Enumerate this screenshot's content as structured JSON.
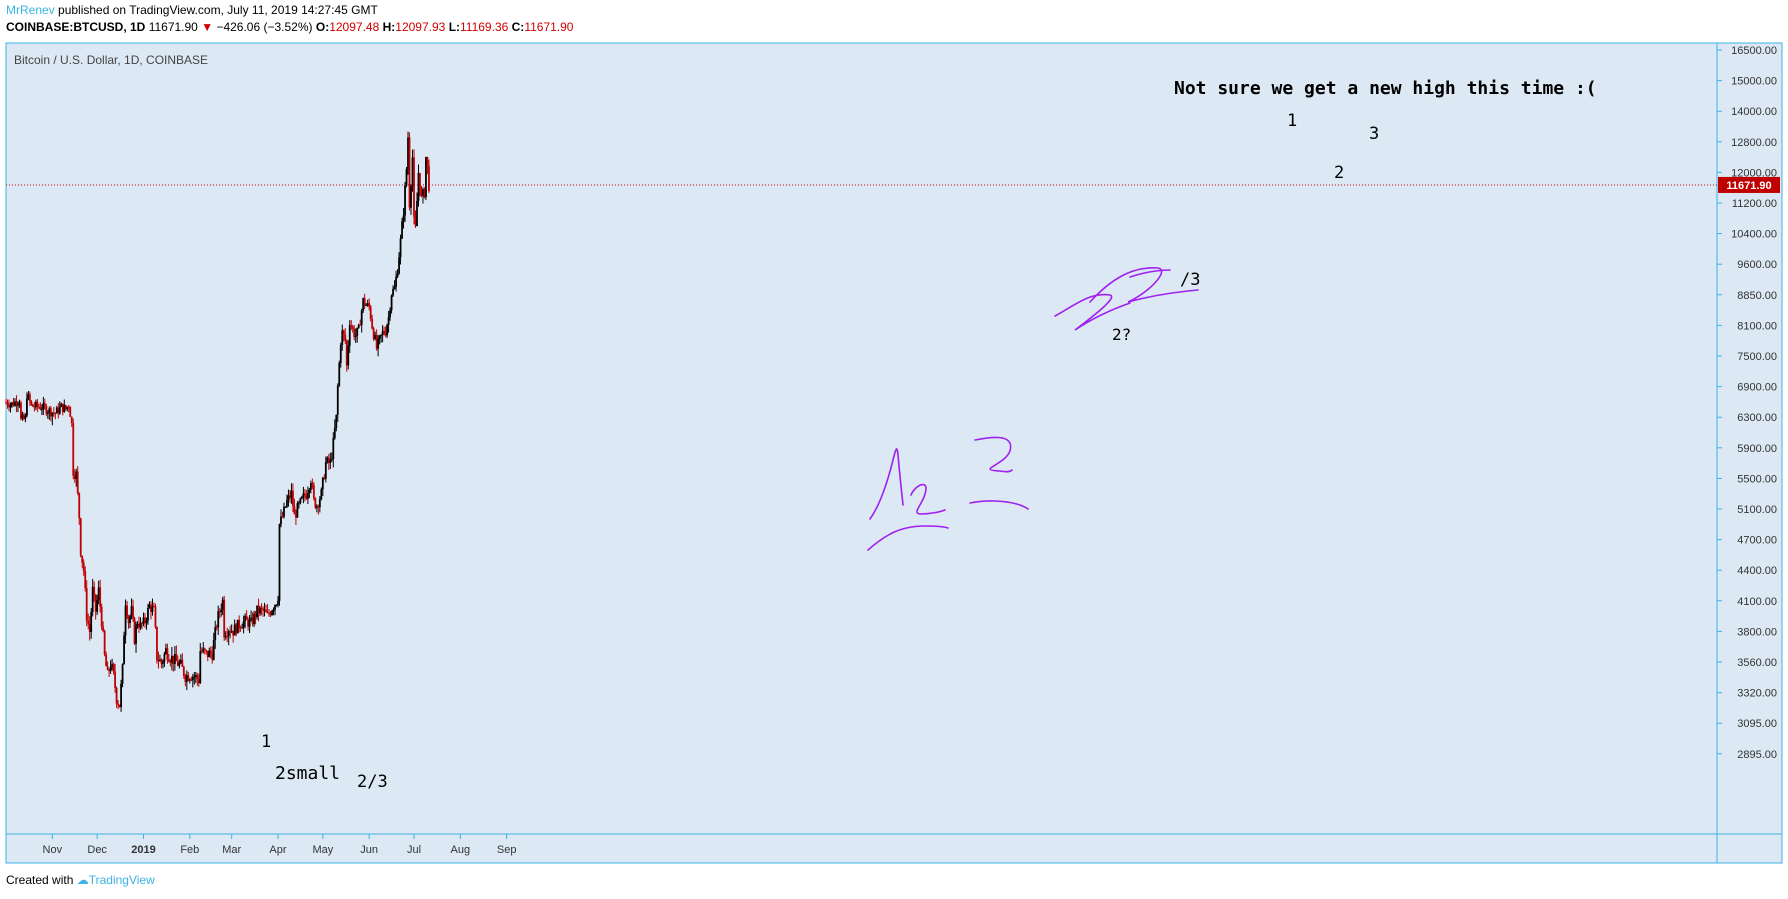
{
  "header": {
    "author": "MrRenev",
    "published": "published on TradingView.com, July 11, 2019 14:27:45 GMT",
    "symbol": "COINBASE:BTCUSD, 1D",
    "last": "11671.90",
    "change_arrow": "▼",
    "change": "−426.06 (−3.52%)",
    "open_label": "O:",
    "open": "12097.48",
    "high_label": "H:",
    "high": "12097.93",
    "low_label": "L:",
    "low": "11169.36",
    "close_label": "C:",
    "close": "11671.90"
  },
  "footer": {
    "created_with": "Created with",
    "brand": "TradingView"
  },
  "colors": {
    "bg": "#dce8f4",
    "up": "#000000",
    "down": "#c00000",
    "accent": "#3bb3e4",
    "price_line": "#c00000",
    "drawing": "#a020f0"
  },
  "chart_data": {
    "type": "candlestick",
    "title": "Bitcoin / U.S. Dollar, 1D, COINBASE",
    "current_price": 11671.9,
    "current_price_label": "11671.90",
    "y_ticks": [
      "16500.00",
      "15000.00",
      "14000.00",
      "12800.00",
      "12000.00",
      "11200.00",
      "10400.00",
      "9600.00",
      "8850.00",
      "8100.00",
      "7500.00",
      "6900.00",
      "6300.00",
      "5900.00",
      "5500.00",
      "5100.00",
      "4700.00",
      "4400.00",
      "4100.00",
      "3800.00",
      "3560.00",
      "3320.00",
      "3095.00",
      "2895.00"
    ],
    "x_ticks": [
      "Nov",
      "Dec",
      "2019",
      "Feb",
      "Mar",
      "Apr",
      "May",
      "Jun",
      "Jul",
      "Aug",
      "Sep"
    ],
    "close_series": [
      [
        "2018-10-01",
        6590
      ],
      [
        "2018-10-05",
        6560
      ],
      [
        "2018-10-10",
        6650
      ],
      [
        "2018-10-11",
        6250
      ],
      [
        "2018-10-14",
        6280
      ],
      [
        "2018-10-15",
        6750
      ],
      [
        "2018-10-18",
        6520
      ],
      [
        "2018-10-25",
        6500
      ],
      [
        "2018-11-01",
        6400
      ],
      [
        "2018-11-03",
        6380
      ],
      [
        "2018-11-07",
        6500
      ],
      [
        "2018-11-10",
        6460
      ],
      [
        "2018-11-12",
        6550
      ],
      [
        "2018-11-14",
        6200
      ],
      [
        "2018-11-15",
        5600
      ],
      [
        "2018-11-17",
        5550
      ],
      [
        "2018-11-19",
        5000
      ],
      [
        "2018-11-20",
        4600
      ],
      [
        "2018-11-22",
        4400
      ],
      [
        "2018-11-24",
        3950
      ],
      [
        "2018-11-26",
        3800
      ],
      [
        "2018-11-28",
        4200
      ],
      [
        "2018-11-30",
        4000
      ],
      [
        "2018-12-02",
        4200
      ],
      [
        "2018-12-04",
        3900
      ],
      [
        "2018-12-06",
        3600
      ],
      [
        "2018-12-08",
        3450
      ],
      [
        "2018-12-10",
        3550
      ],
      [
        "2018-12-12",
        3450
      ],
      [
        "2018-12-14",
        3280
      ],
      [
        "2018-12-16",
        3230
      ],
      [
        "2018-12-18",
        3500
      ],
      [
        "2018-12-20",
        4100
      ],
      [
        "2018-12-22",
        3900
      ],
      [
        "2018-12-24",
        4000
      ],
      [
        "2018-12-26",
        3750
      ],
      [
        "2018-12-28",
        3900
      ],
      [
        "2018-12-30",
        3850
      ],
      [
        "2019-01-02",
        3900
      ],
      [
        "2019-01-05",
        4050
      ],
      [
        "2019-01-08",
        4000
      ],
      [
        "2019-01-10",
        3600
      ],
      [
        "2019-01-13",
        3550
      ],
      [
        "2019-01-16",
        3650
      ],
      [
        "2019-01-19",
        3600
      ],
      [
        "2019-01-22",
        3570
      ],
      [
        "2019-01-26",
        3530
      ],
      [
        "2019-01-29",
        3450
      ],
      [
        "2019-02-01",
        3460
      ],
      [
        "2019-02-04",
        3450
      ],
      [
        "2019-02-07",
        3420
      ],
      [
        "2019-02-08",
        3650
      ],
      [
        "2019-02-12",
        3620
      ],
      [
        "2019-02-16",
        3630
      ],
      [
        "2019-02-20",
        3950
      ],
      [
        "2019-02-23",
        4100
      ],
      [
        "2019-02-24",
        3800
      ],
      [
        "2019-02-27",
        3830
      ],
      [
        "2019-03-02",
        3810
      ],
      [
        "2019-03-06",
        3870
      ],
      [
        "2019-03-10",
        3900
      ],
      [
        "2019-03-14",
        3880
      ],
      [
        "2019-03-18",
        4000
      ],
      [
        "2019-03-22",
        4000
      ],
      [
        "2019-03-25",
        3950
      ],
      [
        "2019-03-28",
        4030
      ],
      [
        "2019-03-31",
        4100
      ],
      [
        "2019-04-01",
        4150
      ],
      [
        "2019-04-02",
        4900
      ],
      [
        "2019-04-04",
        5000
      ],
      [
        "2019-04-07",
        5200
      ],
      [
        "2019-04-10",
        5300
      ],
      [
        "2019-04-12",
        5000
      ],
      [
        "2019-04-14",
        5100
      ],
      [
        "2019-04-18",
        5250
      ],
      [
        "2019-04-20",
        5300
      ],
      [
        "2019-04-23",
        5500
      ],
      [
        "2019-04-25",
        5200
      ],
      [
        "2019-04-27",
        5150
      ],
      [
        "2019-04-30",
        5300
      ],
      [
        "2019-05-03",
        5700
      ],
      [
        "2019-05-06",
        5700
      ],
      [
        "2019-05-08",
        5950
      ],
      [
        "2019-05-10",
        6300
      ],
      [
        "2019-05-11",
        6900
      ],
      [
        "2019-05-13",
        7800
      ],
      [
        "2019-05-14",
        7950
      ],
      [
        "2019-05-16",
        7800
      ],
      [
        "2019-05-17",
        7300
      ],
      [
        "2019-05-19",
        8200
      ],
      [
        "2019-05-21",
        8000
      ],
      [
        "2019-05-23",
        7900
      ],
      [
        "2019-05-25",
        8000
      ],
      [
        "2019-05-28",
        8700
      ],
      [
        "2019-05-30",
        8600
      ],
      [
        "2019-06-01",
        8550
      ],
      [
        "2019-06-03",
        8100
      ],
      [
        "2019-06-06",
        7650
      ],
      [
        "2019-06-08",
        7800
      ],
      [
        "2019-06-10",
        7950
      ],
      [
        "2019-06-12",
        8000
      ],
      [
        "2019-06-14",
        8300
      ],
      [
        "2019-06-16",
        8900
      ],
      [
        "2019-06-18",
        9000
      ],
      [
        "2019-06-20",
        9500
      ],
      [
        "2019-06-22",
        10200
      ],
      [
        "2019-06-24",
        11000
      ],
      [
        "2019-06-26",
        12100
      ],
      [
        "2019-06-27",
        13000
      ],
      [
        "2019-06-28",
        11200
      ],
      [
        "2019-06-30",
        12400
      ],
      [
        "2019-07-01",
        10700
      ],
      [
        "2019-07-02",
        10500
      ],
      [
        "2019-07-04",
        12000
      ],
      [
        "2019-07-06",
        11300
      ],
      [
        "2019-07-08",
        11500
      ],
      [
        "2019-07-09",
        12400
      ],
      [
        "2019-07-10",
        12100
      ],
      [
        "2019-07-11",
        11671.9
      ]
    ],
    "annotations": [
      "Not sure we get a new high this time :(",
      "1",
      "2",
      "3",
      "2?",
      "/3",
      "1",
      "2small",
      "2/3"
    ]
  }
}
